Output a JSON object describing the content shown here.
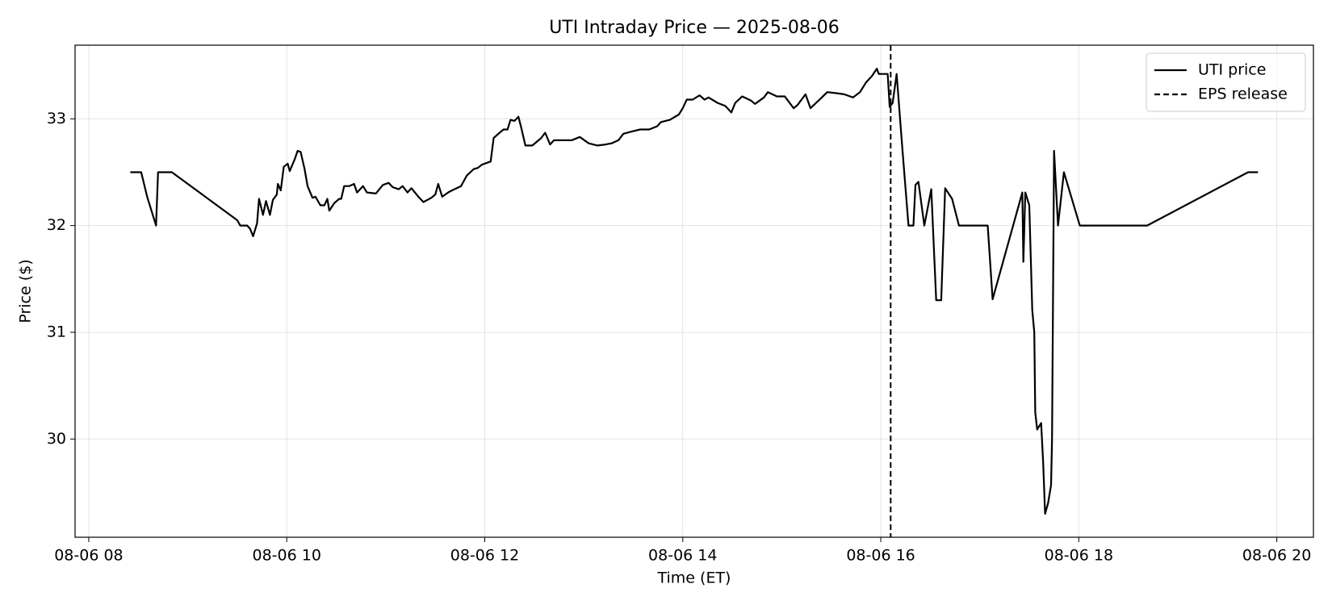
{
  "chart_data": {
    "type": "line",
    "title": "UTI Intraday Price — 2025-08-06",
    "x_label": "Time (ET)",
    "y_label": "Price ($)",
    "x": [
      8.42,
      8.53,
      8.59,
      8.68,
      8.7,
      8.84,
      9.5,
      9.53,
      9.6,
      9.63,
      9.66,
      9.7,
      9.72,
      9.76,
      9.79,
      9.83,
      9.86,
      9.9,
      9.91,
      9.94,
      9.97,
      10.01,
      10.03,
      10.08,
      10.11,
      10.14,
      10.18,
      10.21,
      10.26,
      10.29,
      10.34,
      10.38,
      10.41,
      10.43,
      10.48,
      10.53,
      10.55,
      10.58,
      10.63,
      10.68,
      10.71,
      10.77,
      10.81,
      10.9,
      10.97,
      11.03,
      11.07,
      11.13,
      11.17,
      11.22,
      11.26,
      11.33,
      11.38,
      11.46,
      11.5,
      11.53,
      11.57,
      11.63,
      11.67,
      11.76,
      11.82,
      11.89,
      11.93,
      11.97,
      12.06,
      12.09,
      12.15,
      12.19,
      12.23,
      12.26,
      12.3,
      12.34,
      12.37,
      12.41,
      12.48,
      12.57,
      12.61,
      12.66,
      12.7,
      12.79,
      12.88,
      12.96,
      13.05,
      13.14,
      13.22,
      13.28,
      13.35,
      13.4,
      13.48,
      13.57,
      13.66,
      13.74,
      13.78,
      13.87,
      13.96,
      14.0,
      14.04,
      14.1,
      14.17,
      14.22,
      14.26,
      14.35,
      14.43,
      14.49,
      14.53,
      14.6,
      14.69,
      14.73,
      14.82,
      14.86,
      14.95,
      15.03,
      15.12,
      15.16,
      15.24,
      15.29,
      15.37,
      15.46,
      15.55,
      15.63,
      15.72,
      15.79,
      15.85,
      15.91,
      15.96,
      15.98,
      16.03,
      16.07,
      16.09,
      16.12,
      16.16,
      16.22,
      16.28,
      16.33,
      16.35,
      16.38,
      16.44,
      16.51,
      16.56,
      16.61,
      16.65,
      16.72,
      16.79,
      17.08,
      17.13,
      17.43,
      17.44,
      17.46,
      17.5,
      17.53,
      17.55,
      17.56,
      17.58,
      17.62,
      17.64,
      17.66,
      17.69,
      17.72,
      17.73,
      17.75,
      17.79,
      17.85,
      18.01,
      18.69,
      19.71,
      19.81
    ],
    "series": [
      {
        "name": "UTI price",
        "color": "#000000",
        "values": [
          32.5,
          32.5,
          32.27,
          32.0,
          32.5,
          32.5,
          32.05,
          32.0,
          32.0,
          31.97,
          31.9,
          32.02,
          32.25,
          32.1,
          32.23,
          32.1,
          32.24,
          32.29,
          32.39,
          32.33,
          32.55,
          32.58,
          32.51,
          32.62,
          32.7,
          32.69,
          32.53,
          32.37,
          32.26,
          32.27,
          32.19,
          32.19,
          32.25,
          32.14,
          32.21,
          32.25,
          32.25,
          32.37,
          32.37,
          32.39,
          32.31,
          32.37,
          32.31,
          32.3,
          32.38,
          32.4,
          32.36,
          32.34,
          32.37,
          32.31,
          32.35,
          32.27,
          32.22,
          32.26,
          32.29,
          32.39,
          32.27,
          32.31,
          32.33,
          32.37,
          32.47,
          32.53,
          32.54,
          32.57,
          32.6,
          32.82,
          32.87,
          32.9,
          32.9,
          32.99,
          32.98,
          33.02,
          32.91,
          32.75,
          32.75,
          32.82,
          32.87,
          32.76,
          32.8,
          32.8,
          32.8,
          32.83,
          32.77,
          32.75,
          32.76,
          32.77,
          32.8,
          32.86,
          32.88,
          32.9,
          32.9,
          32.93,
          32.97,
          32.99,
          33.04,
          33.1,
          33.18,
          33.18,
          33.22,
          33.18,
          33.2,
          33.15,
          33.12,
          33.06,
          33.15,
          33.21,
          33.17,
          33.14,
          33.2,
          33.25,
          33.21,
          33.21,
          33.1,
          33.13,
          33.23,
          33.1,
          33.17,
          33.25,
          33.24,
          33.23,
          33.2,
          33.25,
          33.34,
          33.4,
          33.47,
          33.42,
          33.42,
          33.42,
          33.11,
          33.15,
          33.42,
          32.7,
          32.0,
          32.0,
          32.38,
          32.41,
          32.0,
          32.34,
          31.3,
          31.3,
          32.35,
          32.25,
          32.0,
          32.0,
          31.31,
          32.31,
          31.66,
          32.31,
          32.19,
          31.21,
          31.0,
          30.25,
          30.09,
          30.15,
          29.78,
          29.3,
          29.4,
          29.57,
          30.0,
          32.7,
          32.0,
          32.5,
          32.0,
          32.0,
          32.5,
          32.5
        ]
      }
    ],
    "vlines": [
      {
        "x": 16.1,
        "label": "EPS release",
        "color": "#000000",
        "style": "dashed"
      }
    ],
    "xlim": [
      7.862,
      20.37
    ],
    "ylim": [
      29.08,
      33.69
    ],
    "xticks": [
      {
        "value": 8,
        "label": "08-06 08"
      },
      {
        "value": 10,
        "label": "08-06 10"
      },
      {
        "value": 12,
        "label": "08-06 12"
      },
      {
        "value": 14,
        "label": "08-06 14"
      },
      {
        "value": 16,
        "label": "08-06 16"
      },
      {
        "value": 18,
        "label": "08-06 18"
      },
      {
        "value": 20,
        "label": "08-06 20"
      }
    ],
    "yticks": [
      30,
      31,
      32,
      33
    ],
    "grid": true,
    "legend": "upper right"
  }
}
